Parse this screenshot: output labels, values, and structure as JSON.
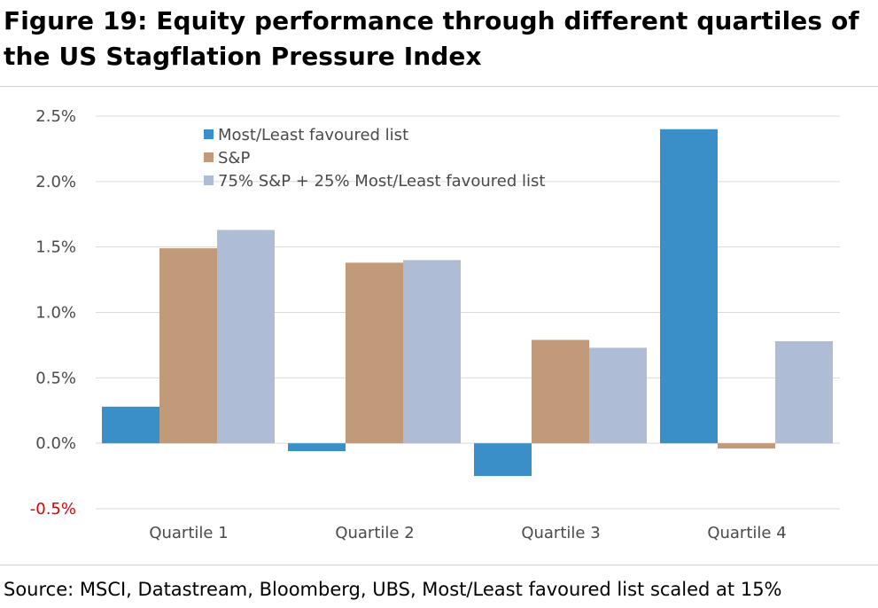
{
  "figure": {
    "title": "Figure 19: Equity performance through different quartiles of the US Stagflation Pressure Index",
    "source": "Source: MSCI, Datastream, Bloomberg, UBS, Most/Least favoured list scaled at 15%"
  },
  "chart_data": {
    "type": "bar",
    "categories": [
      "Quartile 1",
      "Quartile 2",
      "Quartile 3",
      "Quartile 4"
    ],
    "series": [
      {
        "name": "Most/Least favoured list",
        "color": "#3a8fc9",
        "values": [
          0.28,
          -0.06,
          -0.25,
          2.4
        ]
      },
      {
        "name": "S&P",
        "color": "#c19a79",
        "values": [
          1.49,
          1.38,
          0.79,
          -0.04
        ]
      },
      {
        "name": "75% S&P + 25% Most/Least favoured list",
        "color": "#aebcd6",
        "values": [
          1.63,
          1.4,
          0.73,
          0.78
        ]
      }
    ],
    "ylim": [
      -0.5,
      2.5
    ],
    "yticks": [
      2.5,
      2.0,
      1.5,
      1.0,
      0.5,
      0.0,
      -0.5
    ],
    "ytick_labels": [
      "2.5%",
      "2.0%",
      "1.5%",
      "1.0%",
      "0.5%",
      "0.0%",
      "-0.5%"
    ],
    "negative_tick_color": "#e00000",
    "gridlines": true,
    "legend_position": "top-left",
    "xlabel": "",
    "ylabel": ""
  }
}
